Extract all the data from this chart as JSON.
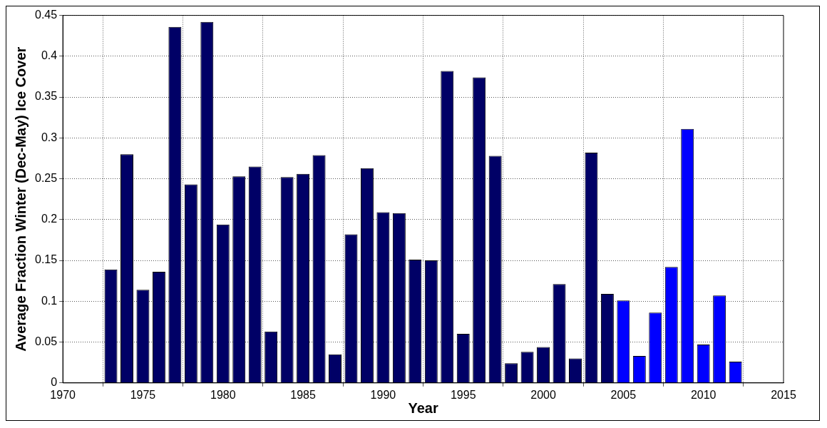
{
  "chart_data": {
    "type": "bar",
    "xlabel": "Year",
    "ylabel": "Average Fraction Winter (Dec-May) Ice Cover",
    "x": [
      1973,
      1974,
      1975,
      1976,
      1977,
      1978,
      1979,
      1980,
      1981,
      1982,
      1983,
      1984,
      1985,
      1986,
      1987,
      1988,
      1989,
      1990,
      1991,
      1992,
      1993,
      1994,
      1995,
      1996,
      1997,
      1998,
      1999,
      2000,
      2001,
      2002,
      2003,
      2004,
      2005,
      2006,
      2007,
      2008,
      2009,
      2010,
      2011,
      2012
    ],
    "values": [
      0.139,
      0.28,
      0.114,
      0.136,
      0.436,
      0.243,
      0.442,
      0.194,
      0.253,
      0.265,
      0.063,
      0.252,
      0.256,
      0.279,
      0.035,
      0.182,
      0.263,
      0.209,
      0.208,
      0.151,
      0.15,
      0.382,
      0.06,
      0.374,
      0.278,
      0.024,
      0.038,
      0.044,
      0.121,
      0.03,
      0.282,
      0.109,
      0.101,
      0.033,
      0.086,
      0.142,
      0.311,
      0.047,
      0.107,
      0.026
    ],
    "colors": [
      "#000066",
      "#000066",
      "#000066",
      "#000066",
      "#000066",
      "#000066",
      "#000066",
      "#000066",
      "#000066",
      "#000066",
      "#000066",
      "#000066",
      "#000066",
      "#000066",
      "#000066",
      "#000066",
      "#000066",
      "#000066",
      "#000066",
      "#000066",
      "#000066",
      "#000066",
      "#000066",
      "#000066",
      "#000066",
      "#000066",
      "#000066",
      "#000066",
      "#000066",
      "#000066",
      "#000066",
      "#000066",
      "#0000ff",
      "#0000ff",
      "#0000ff",
      "#0000ff",
      "#0000ff",
      "#0000ff",
      "#0000ff",
      "#0000ff"
    ],
    "xlim": [
      1970,
      2015
    ],
    "xticks": [
      1970,
      1975,
      1980,
      1985,
      1990,
      1995,
      2000,
      2005,
      2010,
      2015
    ],
    "ylim": [
      0,
      0.45
    ],
    "yticks": [
      0,
      0.05,
      0.1,
      0.15,
      0.2,
      0.25,
      0.3,
      0.35,
      0.4,
      0.45
    ],
    "grid": true,
    "legend": false
  }
}
